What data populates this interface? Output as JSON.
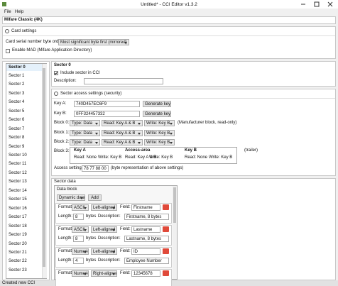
{
  "window": {
    "title": "Untitled* - CCI Editor v1.3.2"
  },
  "menu": [
    "File",
    "Help"
  ],
  "card_type": "Mifare Classic (4K)",
  "card_settings": {
    "title": "Card settings",
    "byte_order_label": "Card serial number byte order:",
    "byte_order_value": "Most significant byte first (mirrored)",
    "mad_label": "Enable MAD (Mifare Application Directory)"
  },
  "sectors": [
    "Sector 0",
    "Sector 1",
    "Sector 2",
    "Sector 3",
    "Sector 4",
    "Sector 5",
    "Sector 6",
    "Sector 7",
    "Sector 8",
    "Sector 9",
    "Sector 10",
    "Sector 11",
    "Sector 12",
    "Sector 13",
    "Sector 14",
    "Sector 15",
    "Sector 16",
    "Sector 17",
    "Sector 18",
    "Sector 19",
    "Sector 20",
    "Sector 21",
    "Sector 22",
    "Sector 23"
  ],
  "sector": {
    "title": "Sector 0",
    "include_label": "Include sector in CCI",
    "description_label": "Description:"
  },
  "access": {
    "title": "Sector access settings (security)",
    "key_a_label": "Key A:",
    "key_a": "740D457EC6F9",
    "key_b_label": "Key B:",
    "key_b": "0FF324457332",
    "generate_button": "Generate key",
    "blocks": [
      {
        "label": "Block 0:",
        "type": "Type: Data",
        "read": "Read: Key A & B",
        "write": "Write: Key B",
        "note": "(Manufacturer block, read-only)"
      },
      {
        "label": "Block 1:",
        "type": "Type: Data",
        "read": "Read: Key A & B",
        "write": "Write: Key B"
      },
      {
        "label": "Block 2:",
        "type": "Type: Data",
        "read": "Read: Key A & B",
        "write": "Write: Key B"
      }
    ],
    "trailer": {
      "label": "Block 3:",
      "columns": [
        {
          "title": "Key A",
          "read": "Read: None",
          "write": "Write: Key B"
        },
        {
          "title": "Access-area",
          "read": "Read: Key A & B",
          "write": "Write: Key B"
        },
        {
          "title": "Key B",
          "read": "Read: None",
          "write": "Write: Key B"
        }
      ],
      "note": "(trailer)"
    },
    "settings_label": "Access settings:",
    "settings_value": "78 77 88 00",
    "settings_note": "(byte representation of above settings)"
  },
  "sector_data": {
    "title": "Sector data",
    "data_block": "Data block",
    "mode": "Dynamic data",
    "add_button": "Add",
    "labels": {
      "format": "Format:",
      "field": "Field:",
      "length": "Length:",
      "bytes": "bytes",
      "description": "Description:"
    },
    "fields": [
      {
        "format": "ASCII",
        "align": "Left-aligned",
        "field": "Firstname",
        "length": "8",
        "description": "Firstname, 8 bytes"
      },
      {
        "format": "ASCII",
        "align": "Left-aligned",
        "field": "Lastname",
        "length": "8",
        "description": "Lastname, 8 bytes"
      },
      {
        "format": "Numeric",
        "align": "Left-aligned",
        "field": "ID",
        "length": "4",
        "description": "Employee Number"
      },
      {
        "format": "Numeric",
        "align": "Right-aligned",
        "field": "12345678"
      }
    ]
  },
  "status": "Created new CCI"
}
